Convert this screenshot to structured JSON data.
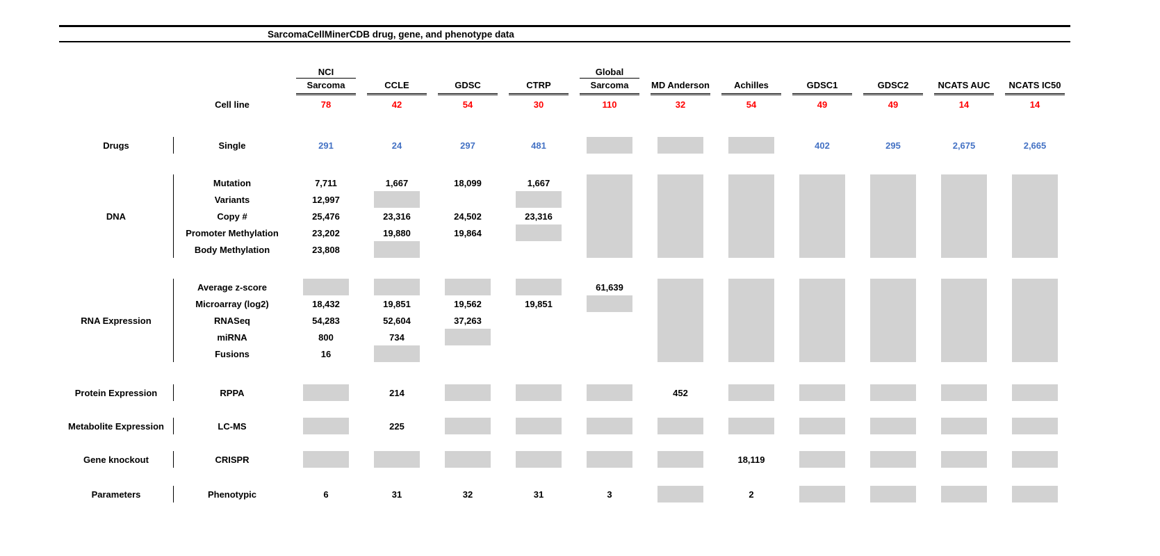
{
  "title": "SarcomaCellMinerCDB drug, gene, and phenotype data",
  "colors": {
    "count_red": "#ff0000",
    "drug_blue": "#4472c4",
    "na_gray": "#d2d2d2"
  },
  "chart_data": {
    "type": "table",
    "title": "SarcomaCellMinerCDB drug, gene, and phenotype data",
    "cell_line_label": "Cell line",
    "columns": [
      {
        "top": "NCI",
        "name": "Sarcoma",
        "cell_lines": "78"
      },
      {
        "top": "",
        "name": "CCLE",
        "cell_lines": "42"
      },
      {
        "top": "",
        "name": "GDSC",
        "cell_lines": "54"
      },
      {
        "top": "",
        "name": "CTRP",
        "cell_lines": "30"
      },
      {
        "top": "Global",
        "name": "Sarcoma",
        "cell_lines": "110"
      },
      {
        "top": "",
        "name": "MD Anderson",
        "cell_lines": "32"
      },
      {
        "top": "",
        "name": "Achilles",
        "cell_lines": "54"
      },
      {
        "top": "",
        "name": "GDSC1",
        "cell_lines": "49"
      },
      {
        "top": "",
        "name": "GDSC2",
        "cell_lines": "49"
      },
      {
        "top": "",
        "name": "NCATS AUC",
        "cell_lines": "14"
      },
      {
        "top": "",
        "name": "NCATS IC50",
        "cell_lines": "14"
      }
    ],
    "sections": [
      {
        "category": "Drugs",
        "rows": [
          {
            "label": "Single",
            "color": "drug_blue",
            "values": [
              "291",
              "24",
              "297",
              "481",
              "NA",
              "NA",
              "NA",
              "402",
              "295",
              "2,675",
              "2,665"
            ]
          }
        ]
      },
      {
        "category": "DNA",
        "rows": [
          {
            "label": "Mutation",
            "values": [
              "7,711",
              "1,667",
              "18,099",
              "1,667",
              "NA",
              "NA",
              "NA",
              "NA",
              "NA",
              "NA",
              "NA"
            ]
          },
          {
            "label": "Variants",
            "values": [
              "12,997",
              "NA",
              "",
              "NA",
              "NA",
              "NA",
              "NA",
              "NA",
              "NA",
              "NA",
              "NA"
            ]
          },
          {
            "label": "Copy #",
            "values": [
              "25,476",
              "23,316",
              "24,502",
              "23,316",
              "NA",
              "NA",
              "NA",
              "NA",
              "NA",
              "NA",
              "NA"
            ]
          },
          {
            "label": "Promoter Methylation",
            "values": [
              "23,202",
              "19,880",
              "19,864",
              "NA",
              "NA",
              "NA",
              "NA",
              "NA",
              "NA",
              "NA",
              "NA"
            ]
          },
          {
            "label": "Body Methylation",
            "values": [
              "23,808",
              "NA",
              "",
              "",
              "NA",
              "NA",
              "NA",
              "NA",
              "NA",
              "NA",
              "NA"
            ]
          }
        ]
      },
      {
        "category": "RNA Expression",
        "rows": [
          {
            "label": "Average z-score",
            "values": [
              "NA",
              "NA",
              "NA",
              "NA",
              "61,639",
              "NA",
              "NA",
              "NA",
              "NA",
              "NA",
              "NA"
            ]
          },
          {
            "label": "Microarray (log2)",
            "values": [
              "18,432",
              "19,851",
              "19,562",
              "19,851",
              "NA",
              "NA",
              "NA",
              "NA",
              "NA",
              "NA",
              "NA"
            ]
          },
          {
            "label": "RNASeq",
            "values": [
              "54,283",
              "52,604",
              "37,263",
              "",
              "",
              "NA",
              "NA",
              "NA",
              "NA",
              "NA",
              "NA"
            ]
          },
          {
            "label": "miRNA",
            "values": [
              "800",
              "734",
              "NA",
              "",
              "",
              "NA",
              "NA",
              "NA",
              "NA",
              "NA",
              "NA"
            ]
          },
          {
            "label": "Fusions",
            "values": [
              "16",
              "NA",
              "",
              "",
              "",
              "NA",
              "NA",
              "NA",
              "NA",
              "NA",
              "NA"
            ]
          }
        ]
      },
      {
        "category": "Protein Expression",
        "rows": [
          {
            "label": "RPPA",
            "values": [
              "NA",
              "214",
              "NA",
              "NA",
              "NA",
              "452",
              "NA",
              "NA",
              "NA",
              "NA",
              "NA"
            ]
          }
        ]
      },
      {
        "category": "Metabolite Expression",
        "rows": [
          {
            "label": "LC-MS",
            "values": [
              "NA",
              "225",
              "NA",
              "NA",
              "NA",
              "NA",
              "NA",
              "NA",
              "NA",
              "NA",
              "NA"
            ]
          }
        ]
      },
      {
        "category": "Gene knockout",
        "rows": [
          {
            "label": "CRISPR",
            "values": [
              "NA",
              "NA",
              "NA",
              "NA",
              "NA",
              "NA",
              "18,119",
              "NA",
              "NA",
              "NA",
              "NA"
            ]
          }
        ]
      },
      {
        "category": "Parameters",
        "rows": [
          {
            "label": "Phenotypic",
            "values": [
              "6",
              "31",
              "32",
              "31",
              "3",
              "NA",
              "2",
              "NA",
              "NA",
              "NA",
              "NA"
            ]
          }
        ]
      }
    ]
  }
}
